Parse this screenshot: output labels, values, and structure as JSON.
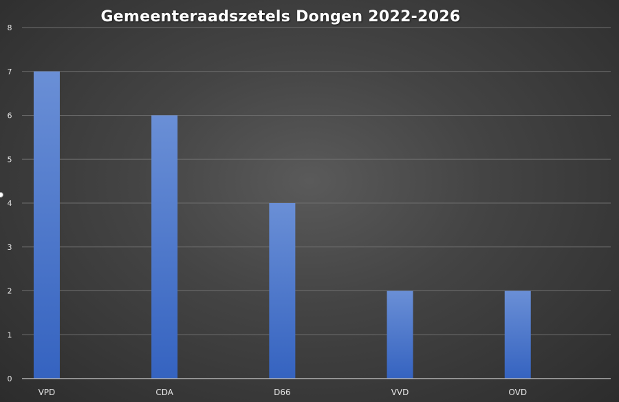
{
  "chart_data": {
    "type": "bar",
    "title": "Gemeenteraadszetels Dongen 2022-2026",
    "categories": [
      "VPD",
      "CDA",
      "D66",
      "VVD",
      "OVD"
    ],
    "values": [
      7,
      6,
      4,
      2,
      2
    ],
    "ylim": [
      0,
      8
    ],
    "yticks": [
      0,
      1,
      2,
      3,
      4,
      5,
      6,
      7,
      8
    ],
    "xlabel": "",
    "ylabel": "",
    "grid": true,
    "legend": "none"
  },
  "colors": {
    "bar_top": "#6a8fd6",
    "bar_bottom": "#3563c0",
    "grid": "#6f6f6f",
    "axis": "#c8c8c8",
    "tick_text": "#e6e6e6"
  }
}
